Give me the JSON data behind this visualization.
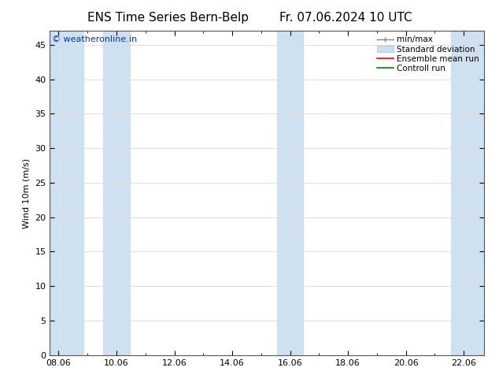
{
  "title_left": "ENS Time Series Bern-Belp",
  "title_right": "Fr. 07.06.2024 10 UTC",
  "ylabel": "Wind 10m (m/s)",
  "ylim": [
    0,
    47
  ],
  "yticks": [
    0,
    5,
    10,
    15,
    20,
    25,
    30,
    35,
    40,
    45
  ],
  "x_tick_labels": [
    "08.06",
    "10.06",
    "12.06",
    "14.06",
    "16.06",
    "18.06",
    "20.06",
    "22.06"
  ],
  "x_tick_positions": [
    0,
    2,
    4,
    6,
    8,
    10,
    12,
    14
  ],
  "xlim": [
    -0.3,
    14.7
  ],
  "shaded_bands": [
    {
      "x_start": -0.3,
      "x_end": 0.85
    },
    {
      "x_start": 1.55,
      "x_end": 2.45
    },
    {
      "x_start": 7.55,
      "x_end": 8.45
    },
    {
      "x_start": 13.55,
      "x_end": 14.7
    }
  ],
  "band_color": "#cfe0f0",
  "watermark": "© weatheronline.in",
  "watermark_color": "#0033cc",
  "watermark_fontsize": 8,
  "legend_labels": [
    "min/max",
    "Standard deviation",
    "Ensemble mean run",
    "Controll run"
  ],
  "legend_colors": [
    "#aaaaaa",
    "#cce0f0",
    "#ff0000",
    "#008800"
  ],
  "background_color": "#ffffff",
  "plot_bg_color": "#ffffff",
  "grid_color": "#dddddd",
  "title_fontsize": 11,
  "axis_fontsize": 8,
  "tick_fontsize": 8,
  "legend_fontsize": 7.5,
  "fig_width": 6.34,
  "fig_height": 4.9,
  "dpi": 100
}
